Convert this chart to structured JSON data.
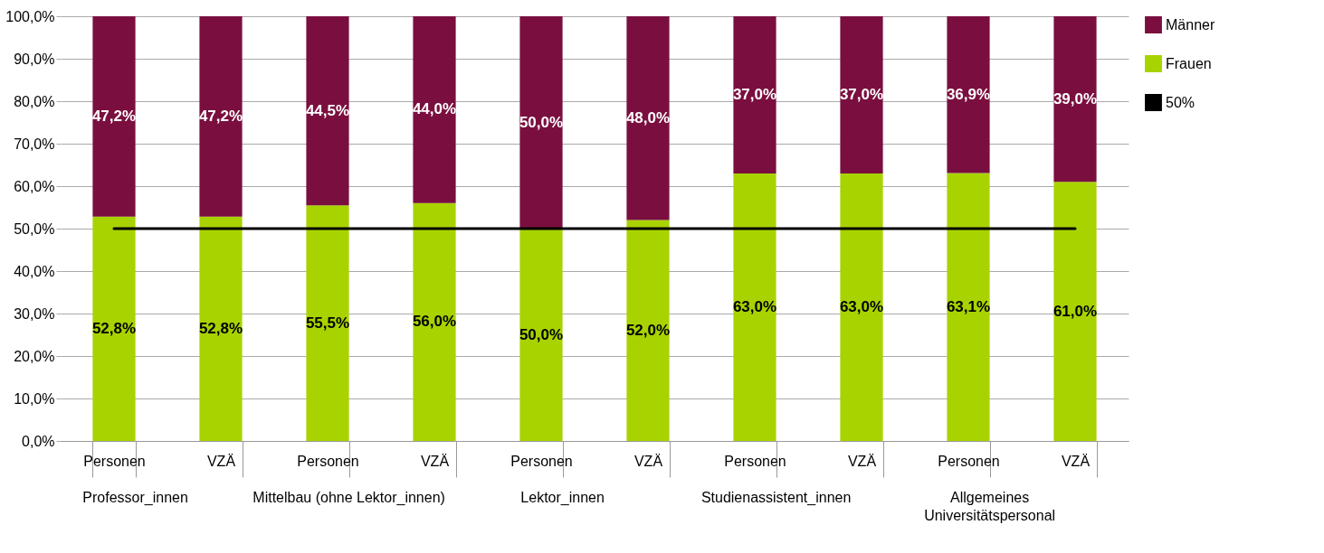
{
  "chart_data": {
    "type": "bar",
    "stacked": true,
    "categories": [
      "Personen",
      "VZÄ",
      "Personen",
      "VZÄ",
      "Personen",
      "VZÄ",
      "Personen",
      "VZÄ",
      "Personen",
      "VZÄ"
    ],
    "series": [
      {
        "name": "Frauen",
        "color": "#a8d300",
        "values": [
          52.8,
          52.8,
          55.5,
          56.0,
          50.0,
          52.0,
          63.0,
          63.0,
          63.1,
          61.0
        ],
        "value_labels": [
          "52,8%",
          "52,8%",
          "55,5%",
          "56,0%",
          "50,0%",
          "52,0%",
          "63,0%",
          "63,0%",
          "63,1%",
          "61,0%"
        ]
      },
      {
        "name": "Männer",
        "color": "#7a0f3f",
        "values": [
          47.2,
          47.2,
          44.5,
          44.0,
          50.0,
          48.0,
          37.0,
          37.0,
          36.9,
          39.0
        ],
        "value_labels": [
          "47,2%",
          "47,2%",
          "44,5%",
          "44,0%",
          "50,0%",
          "48,0%",
          "37,0%",
          "37,0%",
          "36,9%",
          "39,0%"
        ]
      }
    ],
    "ylim": [
      0,
      100
    ],
    "yticks": [
      {
        "value": 0,
        "label": "0,0%"
      },
      {
        "value": 10,
        "label": "10,0%"
      },
      {
        "value": 20,
        "label": "20,0%"
      },
      {
        "value": 30,
        "label": "30,0%"
      },
      {
        "value": 40,
        "label": "40,0%"
      },
      {
        "value": 50,
        "label": "50,0%"
      },
      {
        "value": 60,
        "label": "60,0%"
      },
      {
        "value": 70,
        "label": "70,0%"
      },
      {
        "value": 80,
        "label": "80,0%"
      },
      {
        "value": 90,
        "label": "90,0%"
      },
      {
        "value": 100,
        "label": "100,0%"
      }
    ],
    "grid": "y",
    "legend": "right",
    "ref_lines": [
      {
        "axis": "y",
        "value": 50,
        "label": "50%",
        "color": "#000000"
      }
    ],
    "annotations": [
      "Professor_innen",
      "Mittelbau (ohne Lektor_innen)",
      "Lektor_innen",
      "Studienassistent_innen",
      "Allgemeines Universitätspersonal"
    ]
  }
}
